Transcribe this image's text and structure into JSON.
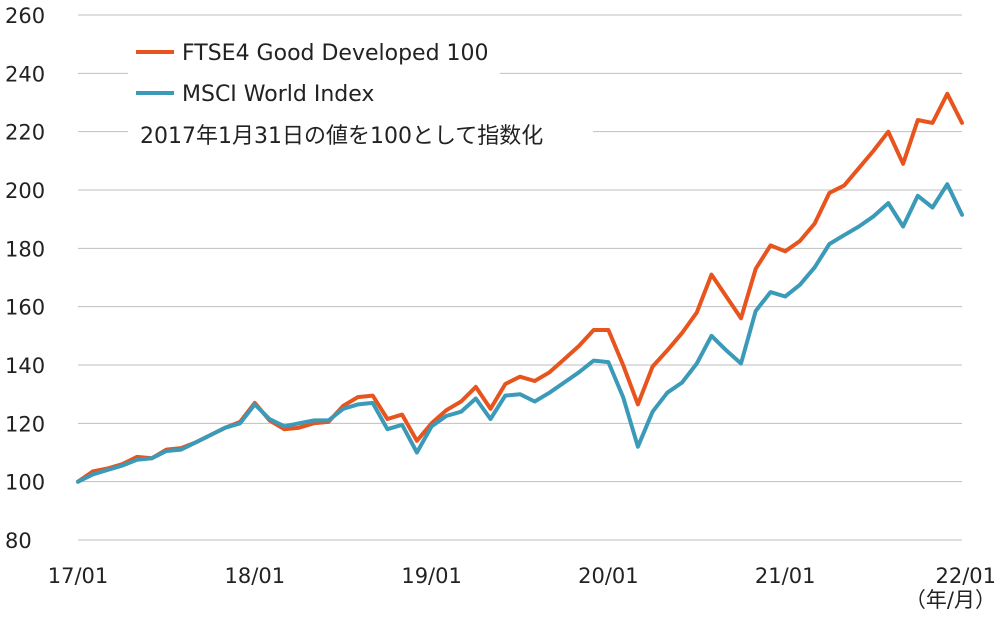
{
  "chart_data": {
    "type": "line",
    "title": "",
    "xlabel": "",
    "ylabel": "",
    "x_unit": "（年/月）",
    "note": "2017年1月31日の値を100として指数化",
    "ylim": [
      80,
      260
    ],
    "yticks": [
      80,
      100,
      120,
      140,
      160,
      180,
      200,
      220,
      240,
      260
    ],
    "xticks": [
      {
        "index": 0,
        "label": "17/01"
      },
      {
        "index": 12,
        "label": "18/01"
      },
      {
        "index": 24,
        "label": "19/01"
      },
      {
        "index": 36,
        "label": "20/01"
      },
      {
        "index": 48,
        "label": "21/01"
      },
      {
        "index": 60,
        "label": "22/01"
      }
    ],
    "x": [
      "2017-01",
      "2017-02",
      "2017-03",
      "2017-04",
      "2017-05",
      "2017-06",
      "2017-07",
      "2017-08",
      "2017-09",
      "2017-10",
      "2017-11",
      "2017-12",
      "2018-01",
      "2018-02",
      "2018-03",
      "2018-04",
      "2018-05",
      "2018-06",
      "2018-07",
      "2018-08",
      "2018-09",
      "2018-10",
      "2018-11",
      "2018-12",
      "2019-01",
      "2019-02",
      "2019-03",
      "2019-04",
      "2019-05",
      "2019-06",
      "2019-07",
      "2019-08",
      "2019-09",
      "2019-10",
      "2019-11",
      "2019-12",
      "2020-01",
      "2020-02",
      "2020-03",
      "2020-04",
      "2020-05",
      "2020-06",
      "2020-07",
      "2020-08",
      "2020-09",
      "2020-10",
      "2020-11",
      "2020-12",
      "2021-01",
      "2021-02",
      "2021-03",
      "2021-04",
      "2021-05",
      "2021-06",
      "2021-07",
      "2021-08",
      "2021-09",
      "2021-10",
      "2021-11",
      "2021-12",
      "2022-01"
    ],
    "grid": true,
    "legend_position": "top-left",
    "series": [
      {
        "name": "FTSE4 Good Developed 100",
        "color": "#e8541e",
        "values": [
          100,
          103.5,
          104.5,
          106,
          108.5,
          108,
          111,
          111.5,
          113.5,
          116,
          118.5,
          120.5,
          127,
          121,
          118,
          118.5,
          120,
          120.5,
          126,
          129,
          129.5,
          121.5,
          123,
          114,
          120,
          124.5,
          127.5,
          132.5,
          125,
          133.5,
          136,
          134.5,
          137.5,
          142,
          146.5,
          152,
          152,
          140,
          126.5,
          139.5,
          145,
          151,
          158,
          171,
          163.5,
          156,
          173,
          181,
          179,
          182.5,
          188.5,
          199,
          201.5,
          207.5,
          213.5,
          220,
          209,
          224,
          223,
          233,
          223
        ]
      },
      {
        "name": "MSCI World Index",
        "color": "#3a9ab8",
        "values": [
          100,
          102.5,
          104,
          105.5,
          107.5,
          108,
          110.5,
          111,
          113.5,
          116,
          118.5,
          120,
          126.5,
          121.5,
          119,
          120,
          121,
          121,
          125,
          126.5,
          127,
          118,
          119.5,
          110,
          119,
          122.5,
          124,
          128.5,
          121.5,
          129.5,
          130,
          127.5,
          130.5,
          134,
          137.5,
          141.5,
          141,
          129,
          112,
          124,
          130.5,
          134,
          140.5,
          150,
          145,
          140.5,
          158.5,
          165,
          163.5,
          167.5,
          173.5,
          181.5,
          184.5,
          187.5,
          191,
          195.5,
          187.5,
          198,
          194,
          202,
          191.5
        ]
      }
    ]
  }
}
